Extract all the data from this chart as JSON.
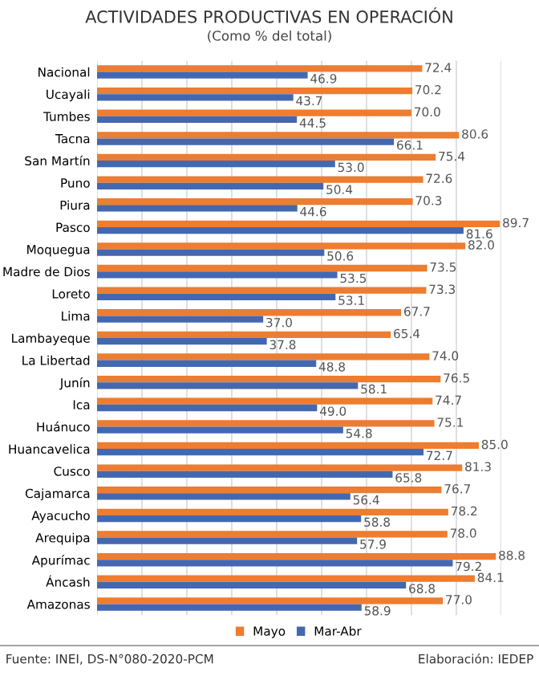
{
  "chart_data": {
    "type": "bar",
    "orientation": "horizontal",
    "title": "ACTIVIDADES PRODUCTIVAS EN OPERACIÓN",
    "subtitle": "(Como % del total)",
    "categories": [
      "Nacional",
      "Ucayali",
      "Tumbes",
      "Tacna",
      "San Martín",
      "Puno",
      "Piura",
      "Pasco",
      "Moquegua",
      "Madre de Dios",
      "Loreto",
      "Lima",
      "Lambayeque",
      "La Libertad",
      "Junín",
      "Ica",
      "Huánuco",
      "Huancavelica",
      "Cusco",
      "Cajamarca",
      "Ayacucho",
      "Arequipa",
      "Apurímac",
      "Áncash",
      "Amazonas"
    ],
    "series": [
      {
        "name": "Mayo",
        "color": "#ed7d31",
        "values": [
          72.4,
          70.2,
          70.0,
          80.6,
          75.4,
          72.6,
          70.3,
          89.7,
          82.0,
          73.5,
          73.3,
          67.7,
          65.4,
          74.0,
          76.5,
          74.7,
          75.1,
          85.0,
          81.3,
          76.7,
          78.2,
          78.0,
          88.8,
          84.1,
          77.0
        ],
        "value_labels": [
          "72.4",
          "70.2",
          "70.0",
          "80.6",
          "75.4",
          "72.6",
          "70.3",
          "89.7",
          "82.0",
          "73.5",
          "73.3",
          "67.7",
          "65.4",
          "74.0",
          "76.5",
          "74.7",
          "75.1",
          "85.0",
          "81.3",
          "76.7",
          "78.2",
          "78.0",
          "88.8",
          "84.1",
          "77.0"
        ]
      },
      {
        "name": "Mar-Abr",
        "color": "#4468b0",
        "values": [
          46.9,
          43.7,
          44.5,
          66.1,
          53.0,
          50.4,
          44.6,
          81.6,
          50.6,
          53.5,
          53.1,
          37.0,
          37.8,
          48.8,
          58.1,
          49.0,
          54.8,
          72.7,
          65.8,
          56.4,
          58.8,
          57.9,
          79.2,
          68.8,
          58.9
        ],
        "value_labels": [
          "46.9",
          "43.7",
          "44.5",
          "66.1",
          "53.0",
          "50.4",
          "44.6",
          "81.6",
          "50.6",
          "53.5",
          "53.1",
          "37.0",
          "37.8",
          "48.8",
          "58.1",
          "49.0",
          "54.8",
          "72.7",
          "65.8",
          "56.4",
          "58.8",
          "57.9",
          "79.2",
          "68.8",
          "58.9"
        ]
      }
    ],
    "xlim": [
      0,
      90
    ],
    "xticks": [
      {
        "value": 0,
        "label": null
      },
      {
        "value": 10,
        "label": null
      },
      {
        "value": 20,
        "label": null
      },
      {
        "value": 30,
        "label": null
      },
      {
        "value": 40,
        "label": null
      },
      {
        "value": 50,
        "label": null
      },
      {
        "value": 60,
        "label": null
      },
      {
        "value": 70,
        "label": null
      },
      {
        "value": 80,
        "label": null
      },
      {
        "value": 90,
        "label": null
      }
    ],
    "tick_labels": "y",
    "grid": "x",
    "legend": "bottom",
    "annotations": [
      "Fuente: INEI, DS-N°080-2020-PCM",
      "Elaboración: IEDEP"
    ]
  }
}
